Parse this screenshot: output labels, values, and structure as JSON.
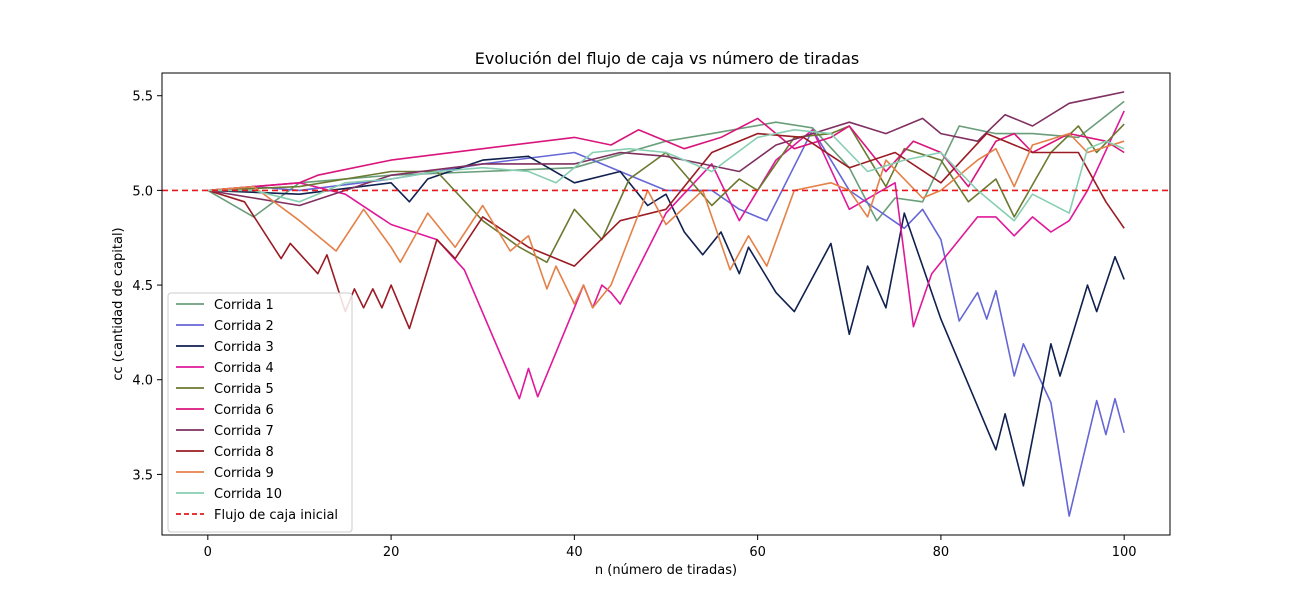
{
  "chart_data": {
    "type": "line",
    "title": "Evolución del flujo de caja vs número de tiradas",
    "xlabel": "n (número de tiradas)",
    "ylabel": "cc (cantidad de capital)",
    "xlim": [
      -5,
      105
    ],
    "ylim": [
      3.18,
      5.62
    ],
    "xticks": [
      0,
      20,
      40,
      60,
      80,
      100
    ],
    "yticks": [
      3.5,
      4.0,
      4.5,
      5.0,
      5.5
    ],
    "ytick_labels": [
      "3.5",
      "4.0",
      "4.5",
      "5.0",
      "5.5"
    ],
    "grid": false,
    "legend_position": "lower-left",
    "reference_line": {
      "name": "Flujo de caja inicial",
      "value": 5.0,
      "color": "#e41a1c",
      "style": "dashed"
    },
    "series": [
      {
        "name": "Corrida 1",
        "color": "#6a9e7a",
        "points": [
          [
            0,
            5.0
          ],
          [
            5,
            4.86
          ],
          [
            10,
            5.04
          ],
          [
            20,
            5.08
          ],
          [
            30,
            5.1
          ],
          [
            40,
            5.12
          ],
          [
            50,
            5.26
          ],
          [
            55,
            5.3
          ],
          [
            62,
            5.36
          ],
          [
            66,
            5.33
          ],
          [
            70,
            5.12
          ],
          [
            73,
            4.84
          ],
          [
            75,
            4.96
          ],
          [
            78,
            4.94
          ],
          [
            82,
            5.34
          ],
          [
            86,
            5.3
          ],
          [
            90,
            5.3
          ],
          [
            95,
            5.28
          ],
          [
            100,
            5.47
          ]
        ]
      },
      {
        "name": "Corrida 2",
        "color": "#6666d6",
        "points": [
          [
            0,
            5.0
          ],
          [
            5,
            5.02
          ],
          [
            10,
            5.0
          ],
          [
            20,
            5.06
          ],
          [
            30,
            5.14
          ],
          [
            40,
            5.2
          ],
          [
            50,
            5.0
          ],
          [
            55,
            5.0
          ],
          [
            58,
            4.9
          ],
          [
            61,
            4.84
          ],
          [
            66,
            5.32
          ],
          [
            70,
            5.0
          ],
          [
            76,
            4.8
          ],
          [
            78,
            4.9
          ],
          [
            80,
            4.74
          ],
          [
            82,
            4.31
          ],
          [
            84,
            4.46
          ],
          [
            85,
            4.32
          ],
          [
            86,
            4.47
          ],
          [
            88,
            4.02
          ],
          [
            89,
            4.19
          ],
          [
            92,
            3.88
          ],
          [
            94,
            3.28
          ],
          [
            97,
            3.89
          ],
          [
            98,
            3.71
          ],
          [
            99,
            3.9
          ],
          [
            100,
            3.72
          ]
        ]
      },
      {
        "name": "Corrida 3",
        "color": "#11214f",
        "points": [
          [
            0,
            5.0
          ],
          [
            10,
            4.98
          ],
          [
            20,
            5.04
          ],
          [
            22,
            4.94
          ],
          [
            24,
            5.06
          ],
          [
            30,
            5.16
          ],
          [
            35,
            5.18
          ],
          [
            40,
            5.04
          ],
          [
            45,
            5.1
          ],
          [
            48,
            4.92
          ],
          [
            50,
            4.98
          ],
          [
            52,
            4.78
          ],
          [
            54,
            4.66
          ],
          [
            56,
            4.78
          ],
          [
            58,
            4.56
          ],
          [
            59,
            4.7
          ],
          [
            62,
            4.46
          ],
          [
            64,
            4.36
          ],
          [
            68,
            4.72
          ],
          [
            70,
            4.24
          ],
          [
            72,
            4.6
          ],
          [
            74,
            4.38
          ],
          [
            76,
            4.88
          ],
          [
            80,
            4.32
          ],
          [
            86,
            3.63
          ],
          [
            87,
            3.82
          ],
          [
            89,
            3.44
          ],
          [
            92,
            4.19
          ],
          [
            93,
            4.02
          ],
          [
            96,
            4.5
          ],
          [
            97,
            4.36
          ],
          [
            99,
            4.65
          ],
          [
            100,
            4.53
          ]
        ]
      },
      {
        "name": "Corrida 4",
        "color": "#e0189a",
        "points": [
          [
            0,
            5.0
          ],
          [
            10,
            5.04
          ],
          [
            15,
            4.98
          ],
          [
            20,
            4.82
          ],
          [
            25,
            4.74
          ],
          [
            28,
            4.58
          ],
          [
            34,
            3.9
          ],
          [
            35,
            4.06
          ],
          [
            36,
            3.91
          ],
          [
            40,
            4.38
          ],
          [
            41,
            4.5
          ],
          [
            42,
            4.38
          ],
          [
            43,
            4.5
          ],
          [
            44,
            4.46
          ],
          [
            45,
            4.4
          ],
          [
            50,
            4.88
          ],
          [
            55,
            5.14
          ],
          [
            58,
            4.84
          ],
          [
            62,
            5.16
          ],
          [
            66,
            5.32
          ],
          [
            70,
            4.9
          ],
          [
            75,
            5.04
          ],
          [
            77,
            4.28
          ],
          [
            79,
            4.56
          ],
          [
            81,
            4.68
          ],
          [
            84,
            4.86
          ],
          [
            86,
            4.86
          ],
          [
            88,
            4.76
          ],
          [
            90,
            4.86
          ],
          [
            92,
            4.78
          ],
          [
            94,
            4.84
          ],
          [
            96,
            5.0
          ],
          [
            100,
            5.42
          ]
        ]
      },
      {
        "name": "Corrida 5",
        "color": "#6b7a30",
        "points": [
          [
            0,
            5.0
          ],
          [
            10,
            5.02
          ],
          [
            20,
            5.1
          ],
          [
            25,
            5.1
          ],
          [
            30,
            4.84
          ],
          [
            34,
            4.7
          ],
          [
            37,
            4.62
          ],
          [
            40,
            4.9
          ],
          [
            43,
            4.74
          ],
          [
            46,
            5.06
          ],
          [
            50,
            5.2
          ],
          [
            55,
            4.92
          ],
          [
            58,
            5.06
          ],
          [
            60,
            5.0
          ],
          [
            64,
            5.28
          ],
          [
            68,
            5.3
          ],
          [
            70,
            5.34
          ],
          [
            74,
            5.02
          ],
          [
            76,
            5.22
          ],
          [
            80,
            5.16
          ],
          [
            83,
            4.94
          ],
          [
            86,
            5.06
          ],
          [
            88,
            4.86
          ],
          [
            92,
            5.2
          ],
          [
            95,
            5.34
          ],
          [
            97,
            5.2
          ],
          [
            100,
            5.35
          ]
        ]
      },
      {
        "name": "Corrida 6",
        "color": "#d9157c",
        "points": [
          [
            0,
            5.0
          ],
          [
            10,
            5.04
          ],
          [
            12,
            5.08
          ],
          [
            20,
            5.16
          ],
          [
            30,
            5.22
          ],
          [
            40,
            5.28
          ],
          [
            44,
            5.24
          ],
          [
            47,
            5.32
          ],
          [
            52,
            5.22
          ],
          [
            56,
            5.28
          ],
          [
            60,
            5.38
          ],
          [
            64,
            5.22
          ],
          [
            68,
            5.28
          ],
          [
            70,
            5.34
          ],
          [
            74,
            5.1
          ],
          [
            77,
            5.26
          ],
          [
            80,
            5.2
          ],
          [
            83,
            5.02
          ],
          [
            86,
            5.26
          ],
          [
            88,
            5.3
          ],
          [
            90,
            5.2
          ],
          [
            94,
            5.3
          ],
          [
            98,
            5.26
          ],
          [
            100,
            5.2
          ]
        ]
      },
      {
        "name": "Corrida 7",
        "color": "#7f3060",
        "points": [
          [
            0,
            5.0
          ],
          [
            5,
            4.96
          ],
          [
            10,
            4.92
          ],
          [
            20,
            5.08
          ],
          [
            30,
            5.14
          ],
          [
            40,
            5.14
          ],
          [
            45,
            5.2
          ],
          [
            50,
            5.18
          ],
          [
            54,
            5.14
          ],
          [
            58,
            5.1
          ],
          [
            62,
            5.24
          ],
          [
            66,
            5.3
          ],
          [
            70,
            5.36
          ],
          [
            74,
            5.3
          ],
          [
            78,
            5.38
          ],
          [
            80,
            5.3
          ],
          [
            84,
            5.26
          ],
          [
            87,
            5.4
          ],
          [
            90,
            5.34
          ],
          [
            94,
            5.46
          ],
          [
            98,
            5.5
          ],
          [
            100,
            5.52
          ]
        ]
      },
      {
        "name": "Corrida 8",
        "color": "#9a1b24",
        "points": [
          [
            0,
            5.0
          ],
          [
            4,
            4.94
          ],
          [
            8,
            4.64
          ],
          [
            9,
            4.72
          ],
          [
            12,
            4.56
          ],
          [
            13,
            4.66
          ],
          [
            15,
            4.36
          ],
          [
            16,
            4.48
          ],
          [
            17,
            4.38
          ],
          [
            18,
            4.48
          ],
          [
            19,
            4.38
          ],
          [
            20,
            4.5
          ],
          [
            22,
            4.27
          ],
          [
            25,
            4.74
          ],
          [
            27,
            4.64
          ],
          [
            30,
            4.86
          ],
          [
            35,
            4.7
          ],
          [
            40,
            4.6
          ],
          [
            45,
            4.84
          ],
          [
            50,
            4.9
          ],
          [
            55,
            5.2
          ],
          [
            60,
            5.3
          ],
          [
            65,
            5.28
          ],
          [
            70,
            5.12
          ],
          [
            75,
            5.2
          ],
          [
            80,
            5.04
          ],
          [
            85,
            5.3
          ],
          [
            90,
            5.2
          ],
          [
            95,
            5.2
          ],
          [
            98,
            4.94
          ],
          [
            100,
            4.8
          ]
        ]
      },
      {
        "name": "Corrida 9",
        "color": "#e48048",
        "points": [
          [
            0,
            5.0
          ],
          [
            5,
            5.02
          ],
          [
            10,
            4.84
          ],
          [
            14,
            4.68
          ],
          [
            17,
            4.9
          ],
          [
            20,
            4.7
          ],
          [
            21,
            4.62
          ],
          [
            24,
            4.88
          ],
          [
            27,
            4.7
          ],
          [
            30,
            4.92
          ],
          [
            33,
            4.68
          ],
          [
            35,
            4.76
          ],
          [
            37,
            4.48
          ],
          [
            38,
            4.6
          ],
          [
            40,
            4.4
          ],
          [
            41,
            4.5
          ],
          [
            42,
            4.38
          ],
          [
            44,
            4.5
          ],
          [
            48,
            5.0
          ],
          [
            50,
            4.82
          ],
          [
            54,
            5.0
          ],
          [
            57,
            4.58
          ],
          [
            59,
            4.76
          ],
          [
            61,
            4.6
          ],
          [
            64,
            5.0
          ],
          [
            68,
            5.04
          ],
          [
            70,
            5.0
          ],
          [
            72,
            4.86
          ],
          [
            74,
            5.16
          ],
          [
            78,
            4.96
          ],
          [
            80,
            5.0
          ],
          [
            84,
            5.16
          ],
          [
            86,
            5.22
          ],
          [
            88,
            5.02
          ],
          [
            90,
            5.24
          ],
          [
            94,
            5.3
          ],
          [
            96,
            5.2
          ],
          [
            100,
            5.26
          ]
        ]
      },
      {
        "name": "Corrida 10",
        "color": "#88ceb2",
        "points": [
          [
            0,
            5.0
          ],
          [
            5,
            5.0
          ],
          [
            10,
            4.94
          ],
          [
            15,
            5.04
          ],
          [
            20,
            5.06
          ],
          [
            25,
            5.1
          ],
          [
            30,
            5.12
          ],
          [
            35,
            5.1
          ],
          [
            38,
            5.04
          ],
          [
            42,
            5.2
          ],
          [
            46,
            5.22
          ],
          [
            50,
            5.2
          ],
          [
            55,
            5.1
          ],
          [
            60,
            5.28
          ],
          [
            64,
            5.32
          ],
          [
            68,
            5.3
          ],
          [
            72,
            5.1
          ],
          [
            76,
            5.16
          ],
          [
            80,
            5.2
          ],
          [
            84,
            5.0
          ],
          [
            88,
            4.84
          ],
          [
            90,
            4.98
          ],
          [
            94,
            4.88
          ],
          [
            96,
            5.22
          ],
          [
            98,
            5.26
          ],
          [
            100,
            5.22
          ]
        ]
      }
    ]
  }
}
